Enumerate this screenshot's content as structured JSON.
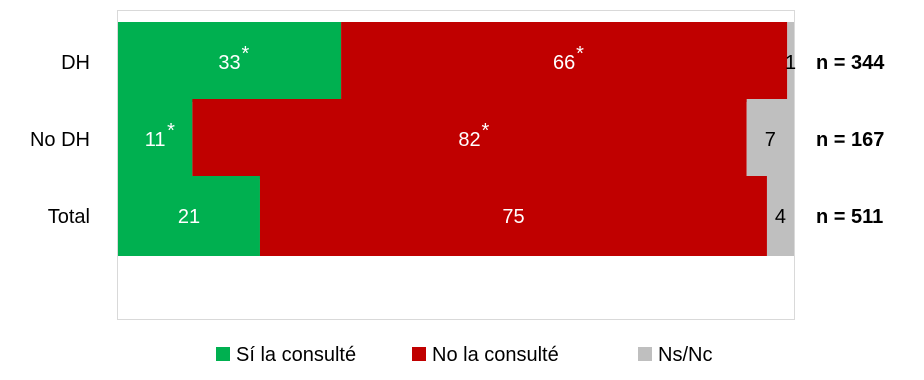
{
  "chart_data": {
    "type": "bar",
    "orientation": "horizontal",
    "stacked": true,
    "categories": [
      "DH",
      "No DH",
      "Total"
    ],
    "series": [
      {
        "name": "Sí la consulté",
        "color": "#00b050",
        "values": [
          33,
          11,
          21
        ],
        "labels": [
          "33",
          "11",
          "21"
        ],
        "significant": [
          true,
          true,
          false
        ]
      },
      {
        "name": "No la consulté",
        "color": "#c00000",
        "values": [
          66,
          82,
          75
        ],
        "labels": [
          "66",
          "82",
          "75"
        ],
        "significant": [
          true,
          true,
          false
        ]
      },
      {
        "name": "Ns/Nc",
        "color": "#bfbfbf",
        "values": [
          1,
          7,
          4
        ],
        "labels": [
          "1",
          "7",
          "4"
        ],
        "significant": [
          false,
          false,
          false
        ]
      }
    ],
    "sample_sizes": [
      "n = 344",
      "n = 167",
      "n = 511"
    ],
    "significance_marker": "*",
    "xlim": [
      0,
      100
    ],
    "grid": false,
    "legend_position": "bottom",
    "title": "",
    "xlabel": "",
    "ylabel": ""
  }
}
